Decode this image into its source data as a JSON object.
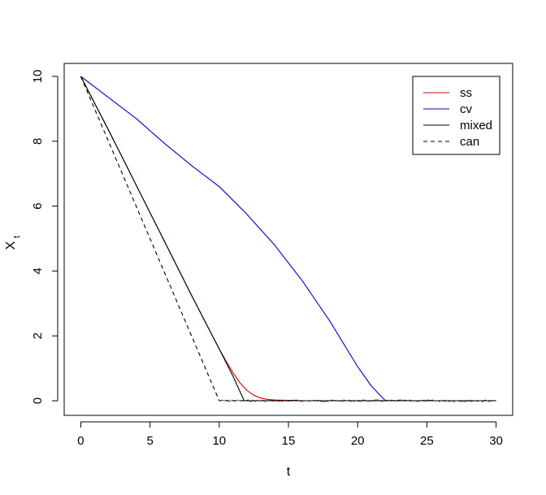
{
  "chart_data": {
    "type": "line",
    "title": "",
    "xlabel": "t",
    "ylabel_main": "X",
    "ylabel_sub": "t",
    "xlim": [
      -1.2,
      31.2
    ],
    "ylim": [
      -0.45,
      10.4
    ],
    "xticks": [
      0,
      5,
      10,
      15,
      20,
      25,
      30
    ],
    "yticks": [
      0,
      2,
      4,
      6,
      8,
      10
    ],
    "grid": false,
    "legend_position": "top-right",
    "series": [
      {
        "name": "ss",
        "color": "#dd0000",
        "dash": "",
        "x": [
          0,
          1,
          2,
          3,
          4,
          5,
          6,
          7,
          8,
          9,
          10,
          10.5,
          11,
          11.5,
          12,
          12.5,
          13,
          13.5,
          14,
          15,
          16,
          18,
          20,
          22,
          25,
          30
        ],
        "y": [
          10,
          9.17,
          8.34,
          7.5,
          6.65,
          5.8,
          4.95,
          4.1,
          3.25,
          2.42,
          1.6,
          1.22,
          0.86,
          0.55,
          0.32,
          0.17,
          0.08,
          0.04,
          0.02,
          0.01,
          0,
          0,
          0,
          0,
          0,
          0
        ]
      },
      {
        "name": "cv",
        "color": "#0000cc",
        "dash": "",
        "x": [
          0,
          2,
          4,
          6,
          8,
          10,
          12,
          14,
          16,
          18,
          20,
          21,
          22,
          25,
          30
        ],
        "y": [
          10,
          9.35,
          8.7,
          7.95,
          7.25,
          6.6,
          5.75,
          4.8,
          3.7,
          2.45,
          1.05,
          0.45,
          0,
          0,
          0
        ]
      },
      {
        "name": "mixed",
        "color": "#000000",
        "dash": "",
        "x": [
          0,
          2,
          4,
          6,
          8,
          10,
          11,
          11.8,
          12,
          30
        ],
        "y": [
          10,
          8.35,
          6.65,
          4.95,
          3.25,
          1.6,
          0.75,
          0,
          0,
          0
        ]
      },
      {
        "name": "can",
        "color": "#000000",
        "dash": "5,4",
        "x": [
          0,
          10,
          30
        ],
        "y": [
          10,
          0,
          0
        ]
      }
    ]
  }
}
